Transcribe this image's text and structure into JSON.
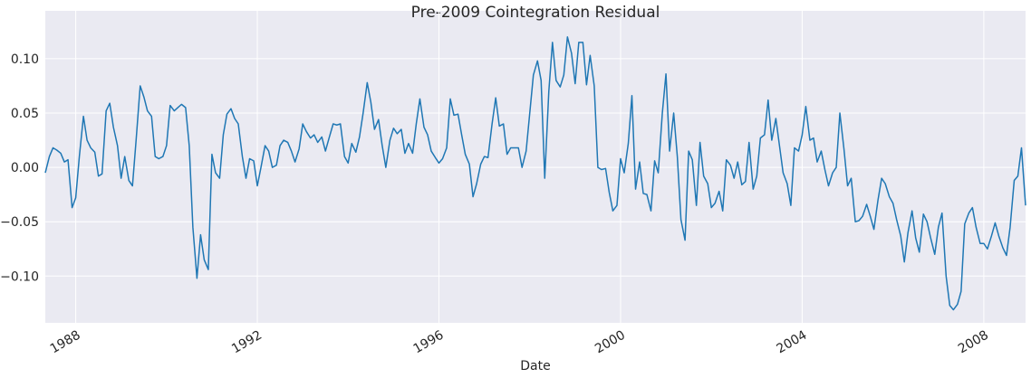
{
  "chart_data": {
    "type": "line",
    "title": "Pre-2009 Cointegration Residual",
    "xlabel": "Date",
    "color": "#1f77b4",
    "grid": true,
    "xlim": [
      1987.33,
      2008.92
    ],
    "xticks": [
      1988,
      1992,
      1996,
      2000,
      2004,
      2008
    ],
    "ylim": [
      -0.143,
      0.144
    ],
    "yticks": [
      {
        "value": -0.1,
        "label": "−0.10"
      },
      {
        "value": -0.05,
        "label": "−0.05"
      },
      {
        "value": 0,
        "label": "0.00"
      },
      {
        "value": 0.05,
        "label": "0.05"
      },
      {
        "value": 0.1,
        "label": "0.10"
      }
    ],
    "x": [
      1987.33,
      1987.42,
      1987.5,
      1987.58,
      1987.67,
      1987.75,
      1987.83,
      1987.92,
      1988,
      1988.08,
      1988.17,
      1988.25,
      1988.33,
      1988.42,
      1988.5,
      1988.58,
      1988.67,
      1988.75,
      1988.83,
      1988.92,
      1989,
      1989.08,
      1989.17,
      1989.25,
      1989.33,
      1989.42,
      1989.5,
      1989.58,
      1989.67,
      1989.75,
      1989.83,
      1989.92,
      1990,
      1990.08,
      1990.17,
      1990.25,
      1990.33,
      1990.42,
      1990.5,
      1990.58,
      1990.67,
      1990.75,
      1990.83,
      1990.92,
      1991,
      1991.08,
      1991.17,
      1991.25,
      1991.33,
      1991.42,
      1991.5,
      1991.58,
      1991.67,
      1991.75,
      1991.83,
      1991.92,
      1992,
      1992.08,
      1992.17,
      1992.25,
      1992.33,
      1992.42,
      1992.5,
      1992.58,
      1992.67,
      1992.75,
      1992.83,
      1992.92,
      1993,
      1993.08,
      1993.17,
      1993.25,
      1993.33,
      1993.42,
      1993.5,
      1993.58,
      1993.67,
      1993.75,
      1993.83,
      1993.92,
      1994,
      1994.08,
      1994.17,
      1994.25,
      1994.33,
      1994.42,
      1994.5,
      1994.58,
      1994.67,
      1994.75,
      1994.83,
      1994.92,
      1995,
      1995.08,
      1995.17,
      1995.25,
      1995.33,
      1995.42,
      1995.5,
      1995.58,
      1995.67,
      1995.75,
      1995.83,
      1995.92,
      1996,
      1996.08,
      1996.17,
      1996.25,
      1996.33,
      1996.42,
      1996.5,
      1996.58,
      1996.67,
      1996.75,
      1996.83,
      1996.92,
      1997,
      1997.08,
      1997.17,
      1997.25,
      1997.33,
      1997.42,
      1997.5,
      1997.58,
      1997.67,
      1997.75,
      1997.83,
      1997.92,
      1998,
      1998.08,
      1998.17,
      1998.25,
      1998.33,
      1998.42,
      1998.5,
      1998.58,
      1998.67,
      1998.75,
      1998.83,
      1998.92,
      1999,
      1999.08,
      1999.17,
      1999.25,
      1999.33,
      1999.42,
      1999.5,
      1999.58,
      1999.67,
      1999.75,
      1999.83,
      1999.92,
      2000,
      2000.08,
      2000.17,
      2000.25,
      2000.33,
      2000.42,
      2000.5,
      2000.58,
      2000.67,
      2000.75,
      2000.83,
      2000.92,
      2001,
      2001.08,
      2001.17,
      2001.25,
      2001.33,
      2001.42,
      2001.5,
      2001.58,
      2001.67,
      2001.75,
      2001.83,
      2001.92,
      2002,
      2002.08,
      2002.17,
      2002.25,
      2002.33,
      2002.42,
      2002.5,
      2002.58,
      2002.67,
      2002.75,
      2002.83,
      2002.92,
      2003,
      2003.08,
      2003.17,
      2003.25,
      2003.33,
      2003.42,
      2003.5,
      2003.58,
      2003.67,
      2003.75,
      2003.83,
      2003.92,
      2004,
      2004.08,
      2004.17,
      2004.25,
      2004.33,
      2004.42,
      2004.5,
      2004.58,
      2004.67,
      2004.75,
      2004.83,
      2004.92,
      2005,
      2005.08,
      2005.17,
      2005.25,
      2005.33,
      2005.42,
      2005.5,
      2005.58,
      2005.67,
      2005.75,
      2005.83,
      2005.92,
      2006,
      2006.08,
      2006.17,
      2006.25,
      2006.33,
      2006.42,
      2006.5,
      2006.58,
      2006.67,
      2006.75,
      2006.83,
      2006.92,
      2007,
      2007.08,
      2007.17,
      2007.25,
      2007.33,
      2007.42,
      2007.5,
      2007.58,
      2007.67,
      2007.75,
      2007.83,
      2007.92,
      2008,
      2008.08,
      2008.17,
      2008.25,
      2008.33,
      2008.42,
      2008.5,
      2008.58,
      2008.67,
      2008.75,
      2008.83,
      2008.92
    ],
    "values": [
      -0.005,
      0.01,
      0.018,
      0.016,
      0.013,
      0.005,
      0.007,
      -0.037,
      -0.028,
      0.01,
      0.047,
      0.025,
      0.018,
      0.014,
      -0.008,
      -0.006,
      0.052,
      0.059,
      0.037,
      0.02,
      -0.01,
      0.01,
      -0.012,
      -0.017,
      0.025,
      0.075,
      0.065,
      0.052,
      0.047,
      0.01,
      0.008,
      0.01,
      0.02,
      0.057,
      0.052,
      0.055,
      0.058,
      0.055,
      0.02,
      -0.055,
      -0.102,
      -0.062,
      -0.085,
      -0.094,
      0.012,
      -0.005,
      -0.01,
      0.03,
      0.049,
      0.054,
      0.045,
      0.04,
      0.01,
      -0.01,
      0.008,
      0.006,
      -0.017,
      0.0,
      0.02,
      0.015,
      0.0,
      0.002,
      0.02,
      0.025,
      0.023,
      0.015,
      0.005,
      0.017,
      0.04,
      0.033,
      0.027,
      0.03,
      0.023,
      0.028,
      0.015,
      0.027,
      0.04,
      0.039,
      0.04,
      0.01,
      0.004,
      0.022,
      0.014,
      0.028,
      0.05,
      0.078,
      0.06,
      0.035,
      0.044,
      0.02,
      0.0,
      0.025,
      0.036,
      0.031,
      0.035,
      0.013,
      0.022,
      0.013,
      0.04,
      0.063,
      0.037,
      0.03,
      0.015,
      0.009,
      0.004,
      0.008,
      0.018,
      0.063,
      0.048,
      0.049,
      0.03,
      0.012,
      0.003,
      -0.027,
      -0.015,
      0.003,
      0.01,
      0.009,
      0.04,
      0.064,
      0.038,
      0.04,
      0.012,
      0.018,
      0.018,
      0.018,
      0.0,
      0.015,
      0.05,
      0.085,
      0.098,
      0.08,
      -0.01,
      0.07,
      0.115,
      0.08,
      0.074,
      0.085,
      0.12,
      0.105,
      0.077,
      0.115,
      0.115,
      0.076,
      0.103,
      0.075,
      0.0,
      -0.002,
      -0.001,
      -0.023,
      -0.04,
      -0.035,
      0.008,
      -0.005,
      0.022,
      0.066,
      -0.02,
      0.005,
      -0.024,
      -0.025,
      -0.04,
      0.006,
      -0.005,
      0.05,
      0.086,
      0.015,
      0.05,
      0.01,
      -0.048,
      -0.067,
      0.015,
      0.007,
      -0.035,
      0.023,
      -0.008,
      -0.015,
      -0.037,
      -0.033,
      -0.022,
      -0.04,
      0.007,
      0.002,
      -0.01,
      0.005,
      -0.016,
      -0.013,
      0.023,
      -0.02,
      -0.008,
      0.027,
      0.03,
      0.062,
      0.025,
      0.045,
      0.02,
      -0.005,
      -0.015,
      -0.035,
      0.018,
      0.015,
      0.03,
      0.056,
      0.025,
      0.027,
      0.005,
      0.015,
      -0.002,
      -0.017,
      -0.005,
      0.0,
      0.05,
      0.017,
      -0.017,
      -0.01,
      -0.05,
      -0.049,
      -0.045,
      -0.034,
      -0.045,
      -0.057,
      -0.03,
      -0.01,
      -0.015,
      -0.027,
      -0.033,
      -0.048,
      -0.063,
      -0.087,
      -0.06,
      -0.04,
      -0.065,
      -0.078,
      -0.043,
      -0.05,
      -0.065,
      -0.08,
      -0.055,
      -0.042,
      -0.1,
      -0.127,
      -0.131,
      -0.126,
      -0.114,
      -0.052,
      -0.042,
      -0.037,
      -0.055,
      -0.07,
      -0.07,
      -0.075,
      -0.063,
      -0.051,
      -0.063,
      -0.074,
      -0.081,
      -0.055,
      -0.012,
      -0.008,
      0.018,
      -0.035
    ]
  }
}
